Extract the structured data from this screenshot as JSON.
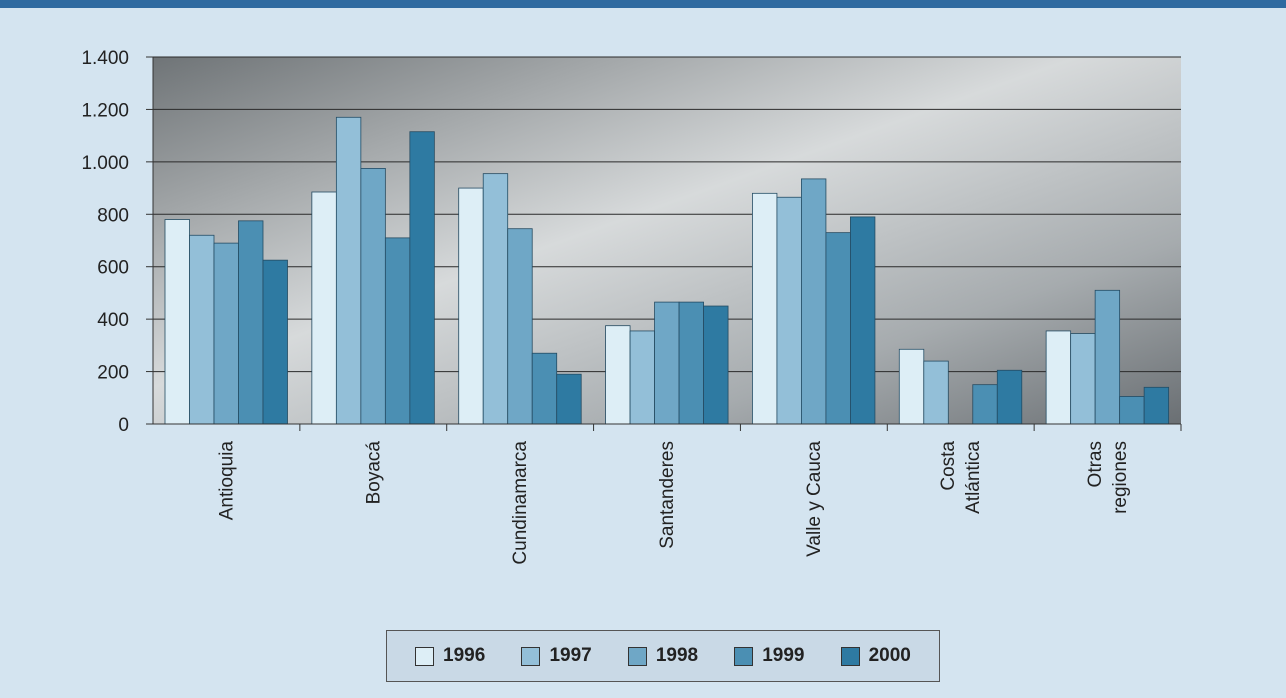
{
  "chart_data": {
    "type": "bar",
    "categories": [
      "Antioquia",
      "Boyacá",
      "Cundinamarca",
      "Santanderes",
      "Valle y Cauca",
      "Costa Atlántica",
      "Otras regiones"
    ],
    "category_lines": [
      [
        "Antioquia"
      ],
      [
        "Boyacá"
      ],
      [
        "Cundinamarca"
      ],
      [
        "Santanderes"
      ],
      [
        "Valle y Cauca"
      ],
      [
        "Costa",
        "Atlántica"
      ],
      [
        "Otras",
        "regiones"
      ]
    ],
    "series": [
      {
        "name": "1996",
        "color": "#ddeef6",
        "values": [
          780,
          885,
          900,
          375,
          880,
          285,
          355
        ]
      },
      {
        "name": "1997",
        "color": "#93bfd8",
        "values": [
          720,
          1170,
          955,
          355,
          865,
          240,
          345
        ]
      },
      {
        "name": "1998",
        "color": "#6fa7c6",
        "values": [
          690,
          975,
          745,
          465,
          935,
          null,
          510
        ]
      },
      {
        "name": "1999",
        "color": "#4b8fb3",
        "values": [
          775,
          710,
          270,
          465,
          730,
          150,
          105
        ]
      },
      {
        "name": "2000",
        "color": "#2e7aa2",
        "values": [
          625,
          1115,
          190,
          450,
          790,
          205,
          140
        ]
      }
    ],
    "ylim": [
      0,
      1400
    ],
    "yticks": [
      0,
      200,
      400,
      600,
      800,
      1000,
      1200,
      1400
    ],
    "ytick_labels": [
      "0",
      "200",
      "400",
      "600",
      "800",
      "1.000",
      "1.200",
      "1.400"
    ],
    "grid": true,
    "legend_position": "bottom"
  }
}
